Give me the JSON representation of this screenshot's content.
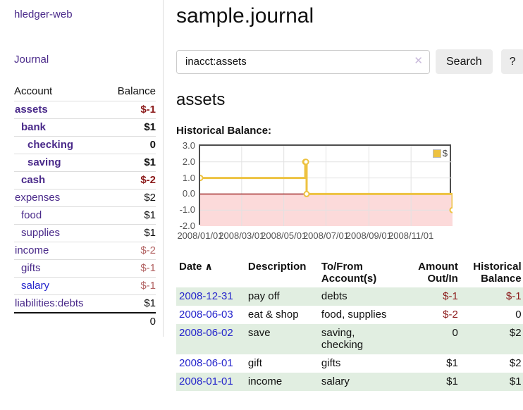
{
  "colors": {
    "purple": "#4a2a8a",
    "blue": "#2525cc",
    "negstrong": "#8b1a1a",
    "negsoft": "#b36464",
    "stripe": "#e1eee1",
    "line": "#edc240",
    "cborder": "#4e4e4e"
  },
  "sidebar": {
    "brand": "hledger-web",
    "journal_link": "Journal",
    "accounts": {
      "header_account": "Account",
      "header_balance": "Balance",
      "rows": [
        {
          "name": "assets",
          "balance": "$-1",
          "depth": 1,
          "bold": true,
          "neg": "strong"
        },
        {
          "name": "bank",
          "balance": "$1",
          "depth": 2,
          "bold": true,
          "neg": ""
        },
        {
          "name": "checking",
          "balance": "0",
          "depth": 3,
          "bold": true,
          "neg": ""
        },
        {
          "name": "saving",
          "balance": "$1",
          "depth": 3,
          "bold": true,
          "neg": ""
        },
        {
          "name": "cash",
          "balance": "$-2",
          "depth": 2,
          "bold": true,
          "neg": "strong"
        },
        {
          "name": "expenses",
          "balance": "$2",
          "depth": 1,
          "bold": false,
          "neg": ""
        },
        {
          "name": "food",
          "balance": "$1",
          "depth": 2,
          "bold": false,
          "neg": ""
        },
        {
          "name": "supplies",
          "balance": "$1",
          "depth": 2,
          "bold": false,
          "neg": ""
        },
        {
          "name": "income",
          "balance": "$-2",
          "depth": 1,
          "bold": false,
          "neg": "soft"
        },
        {
          "name": "gifts",
          "balance": "$-1",
          "depth": 2,
          "bold": false,
          "neg": "soft"
        },
        {
          "name": "salary",
          "balance": "$-1",
          "depth": 2,
          "bold": false,
          "neg": "soft",
          "active": true
        },
        {
          "name": "liabilities:debts",
          "balance": "$1",
          "depth": 1,
          "bold": false,
          "neg": ""
        }
      ],
      "total": "0"
    }
  },
  "header": {
    "title": "sample.journal"
  },
  "search": {
    "value": "inacct:assets",
    "clear_icon": "✕",
    "button_label": "Search",
    "help_label": "?"
  },
  "register": {
    "heading": "assets",
    "chart_label": "Historical Balance:",
    "table": {
      "headers": {
        "date": "Date",
        "sort_icon": "∧",
        "description": "Description",
        "accounts": "To/From\nAccount(s)",
        "amount": "Amount\nOut/In",
        "balance": "Historical\nBalance"
      },
      "rows": [
        {
          "date": "2008-12-31",
          "description": "pay off",
          "accounts": "debts",
          "amount": "$-1",
          "balance": "$-1"
        },
        {
          "date": "2008-06-03",
          "description": "eat & shop",
          "accounts": "food, supplies",
          "amount": "$-2",
          "balance": "0"
        },
        {
          "date": "2008-06-02",
          "description": "save",
          "accounts": "saving,\nchecking",
          "amount": "0",
          "balance": "$2"
        },
        {
          "date": "2008-06-01",
          "description": "gift",
          "accounts": "gifts",
          "amount": "$1",
          "balance": "$2"
        },
        {
          "date": "2008-01-01",
          "description": "income",
          "accounts": "salary",
          "amount": "$1",
          "balance": "$1"
        }
      ]
    }
  },
  "chart_data": {
    "type": "line",
    "step": true,
    "title": "Historical Balance",
    "x_range": [
      "2008-01-01",
      "2008-12-31"
    ],
    "ylim": [
      -2,
      3
    ],
    "yticks": [
      3,
      2,
      1,
      0,
      -1,
      -2
    ],
    "ytick_labels": [
      "3.0",
      "2.0",
      "1.0",
      "0.0",
      "-1.0",
      "-2.0"
    ],
    "xticks": [
      "2008/01/01",
      "2008/03/01",
      "2008/05/01",
      "2008/07/01",
      "2008/09/01",
      "2008/11/01"
    ],
    "series": [
      {
        "name": "$",
        "color": "#edc240",
        "points": [
          [
            "2008-01-01",
            1
          ],
          [
            "2008-06-01",
            2
          ],
          [
            "2008-06-02",
            2
          ],
          [
            "2008-06-03",
            0
          ],
          [
            "2008-12-31",
            -1
          ]
        ]
      }
    ],
    "legend_position": "top-right",
    "grid": true,
    "grid_color": "#e2e2e2",
    "negative_region_color": "#fcdada",
    "zero_line_color": "#8b0000",
    "border_color": "#4e4e4e"
  }
}
